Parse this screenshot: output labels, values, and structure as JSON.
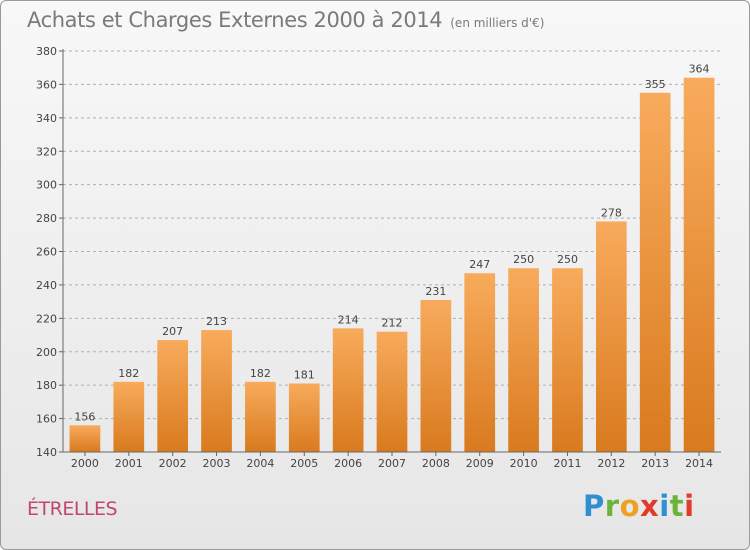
{
  "header": {
    "title": "Achats et Charges Externes 2000 à 2014",
    "subtitle": "(en milliers d'€)"
  },
  "commune": "ÉTRELLES",
  "logo": {
    "letters": [
      "P",
      "r",
      "o",
      "x",
      "i",
      "t",
      "i"
    ],
    "colors": [
      "#2f8fd1",
      "#6bb33a",
      "#f0a020",
      "#e23a2d",
      "#2f8fd1",
      "#6bb33a",
      "#e23a2d"
    ]
  },
  "colors": {
    "bar_top": "#f8ab5c",
    "bar_bottom": "#d97a1e",
    "grid": "#b0b0b0",
    "axis_text": "#444444"
  },
  "chart_data": {
    "type": "bar",
    "title": "Achats et Charges Externes 2000 à 2014",
    "subtitle": "(en milliers d'€)",
    "categories": [
      "2000",
      "2001",
      "2002",
      "2003",
      "2004",
      "2005",
      "2006",
      "2007",
      "2008",
      "2009",
      "2010",
      "2011",
      "2012",
      "2013",
      "2014"
    ],
    "values": [
      156,
      182,
      207,
      213,
      182,
      181,
      214,
      212,
      231,
      247,
      250,
      250,
      278,
      355,
      364
    ],
    "ylim": [
      140,
      380
    ],
    "yticks": [
      140,
      160,
      180,
      200,
      220,
      240,
      260,
      280,
      300,
      320,
      340,
      360,
      380
    ],
    "grid": true
  }
}
